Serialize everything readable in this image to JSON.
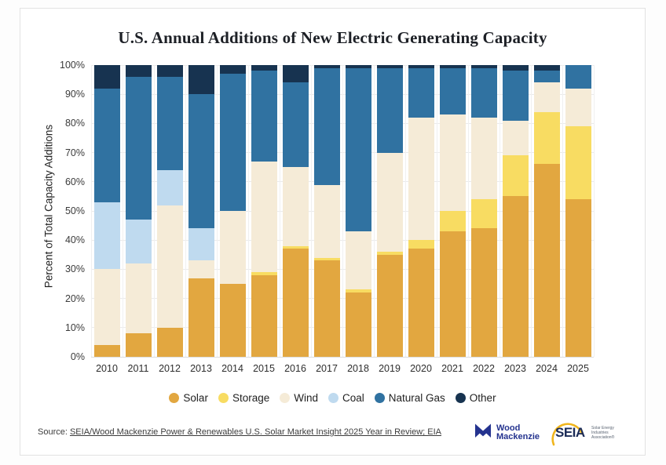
{
  "page": {
    "background": "#ffffff",
    "card_border": "#e2e2e2"
  },
  "chart_data": {
    "type": "bar",
    "stacked": true,
    "unit": "percent",
    "title": "U.S. Annual Additions of New Electric Generating Capacity",
    "xlabel": "",
    "ylabel": "Percent of Total Capacity Additions",
    "ylim": [
      0,
      100
    ],
    "ytick_step": 10,
    "grid": true,
    "legend_position": "bottom",
    "categories": [
      "2010",
      "2011",
      "2012",
      "2013",
      "2014",
      "2015",
      "2016",
      "2017",
      "2018",
      "2019",
      "2020",
      "2021",
      "2022",
      "2023",
      "2024",
      "2025"
    ],
    "series": [
      {
        "name": "Solar",
        "color": "#E2A740",
        "values": [
          4,
          8,
          10,
          27,
          25,
          28,
          37,
          33,
          22,
          35,
          37,
          43,
          44,
          55,
          66,
          54
        ]
      },
      {
        "name": "Storage",
        "color": "#F8DC62",
        "values": [
          0,
          0,
          0,
          0,
          0,
          1,
          1,
          1,
          1,
          1,
          3,
          7,
          10,
          14,
          18,
          25
        ]
      },
      {
        "name": "Wind",
        "color": "#F5EBD7",
        "values": [
          26,
          24,
          42,
          6,
          25,
          38,
          27,
          25,
          20,
          34,
          42,
          33,
          28,
          12,
          10,
          13
        ]
      },
      {
        "name": "Coal",
        "color": "#BFDAEF",
        "values": [
          23,
          15,
          12,
          11,
          0,
          0,
          0,
          0,
          0,
          0,
          0,
          0,
          0,
          0,
          0,
          0
        ]
      },
      {
        "name": "Natural Gas",
        "color": "#3072A1",
        "values": [
          39,
          49,
          32,
          46,
          47,
          31,
          29,
          40,
          56,
          29,
          17,
          16,
          17,
          17,
          4,
          8
        ]
      },
      {
        "name": "Other",
        "color": "#173350",
        "values": [
          8,
          4,
          4,
          10,
          3,
          2,
          6,
          1,
          1,
          1,
          1,
          1,
          1,
          2,
          2,
          0
        ]
      }
    ]
  },
  "footer": {
    "source_prefix": "Source: ",
    "source_link": "SEIA/Wood Mackenzie Power & Renewables U.S. Solar Market Insight 2025 Year in Review; EIA"
  },
  "logos": {
    "woodmac": {
      "line1": "Wood",
      "line2": "Mackenzie",
      "color": "#24338F"
    },
    "seia": {
      "text": "SEIA",
      "sub1": "Solar Energy",
      "sub2": "Industries",
      "sub3": "Association®",
      "navy": "#1B2B57",
      "gold": "#F0B51D"
    }
  }
}
